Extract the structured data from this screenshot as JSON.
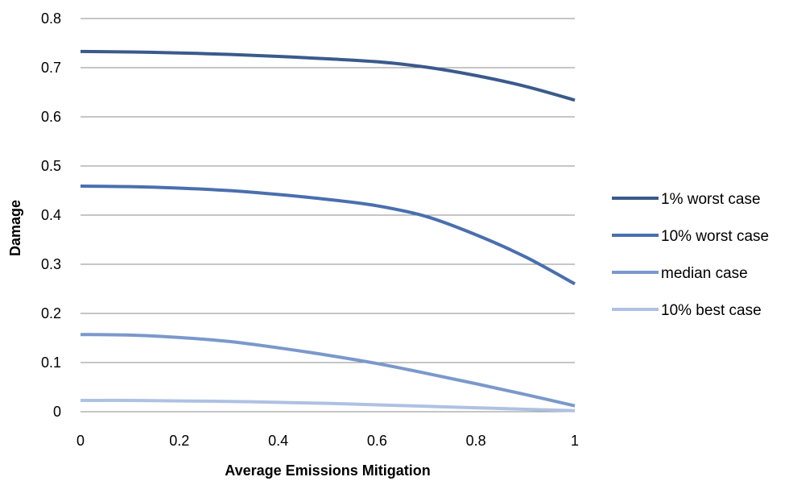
{
  "chart_data": {
    "type": "line",
    "xlabel": "Average Emissions Mitigation",
    "ylabel": "Damage",
    "xlim": [
      0,
      1
    ],
    "ylim": [
      0,
      0.8
    ],
    "x_ticks": [
      "0",
      "0.2",
      "0.4",
      "0.6",
      "0.8",
      "1"
    ],
    "y_ticks": [
      "0",
      "0.1",
      "0.2",
      "0.3",
      "0.4",
      "0.5",
      "0.6",
      "0.7",
      "0.8"
    ],
    "grid": "horizontal",
    "legend_position": "right",
    "x": [
      0,
      0.1,
      0.2,
      0.3,
      0.4,
      0.5,
      0.6,
      0.7,
      0.8,
      0.9,
      1
    ],
    "series": [
      {
        "name": "1% worst case",
        "color": "#3a5a8c",
        "values": [
          0.733,
          0.732,
          0.73,
          0.727,
          0.723,
          0.718,
          0.712,
          0.701,
          0.684,
          0.662,
          0.634
        ]
      },
      {
        "name": "10% worst case",
        "color": "#4a6fae",
        "values": [
          0.459,
          0.458,
          0.455,
          0.45,
          0.442,
          0.432,
          0.419,
          0.397,
          0.36,
          0.315,
          0.26
        ]
      },
      {
        "name": "median case",
        "color": "#7a98cc",
        "values": [
          0.157,
          0.156,
          0.151,
          0.143,
          0.13,
          0.115,
          0.098,
          0.078,
          0.057,
          0.035,
          0.012
        ]
      },
      {
        "name": "10% best case",
        "color": "#aec1e3",
        "values": [
          0.023,
          0.023,
          0.022,
          0.021,
          0.019,
          0.017,
          0.014,
          0.011,
          0.008,
          0.005,
          0.002
        ]
      }
    ]
  }
}
